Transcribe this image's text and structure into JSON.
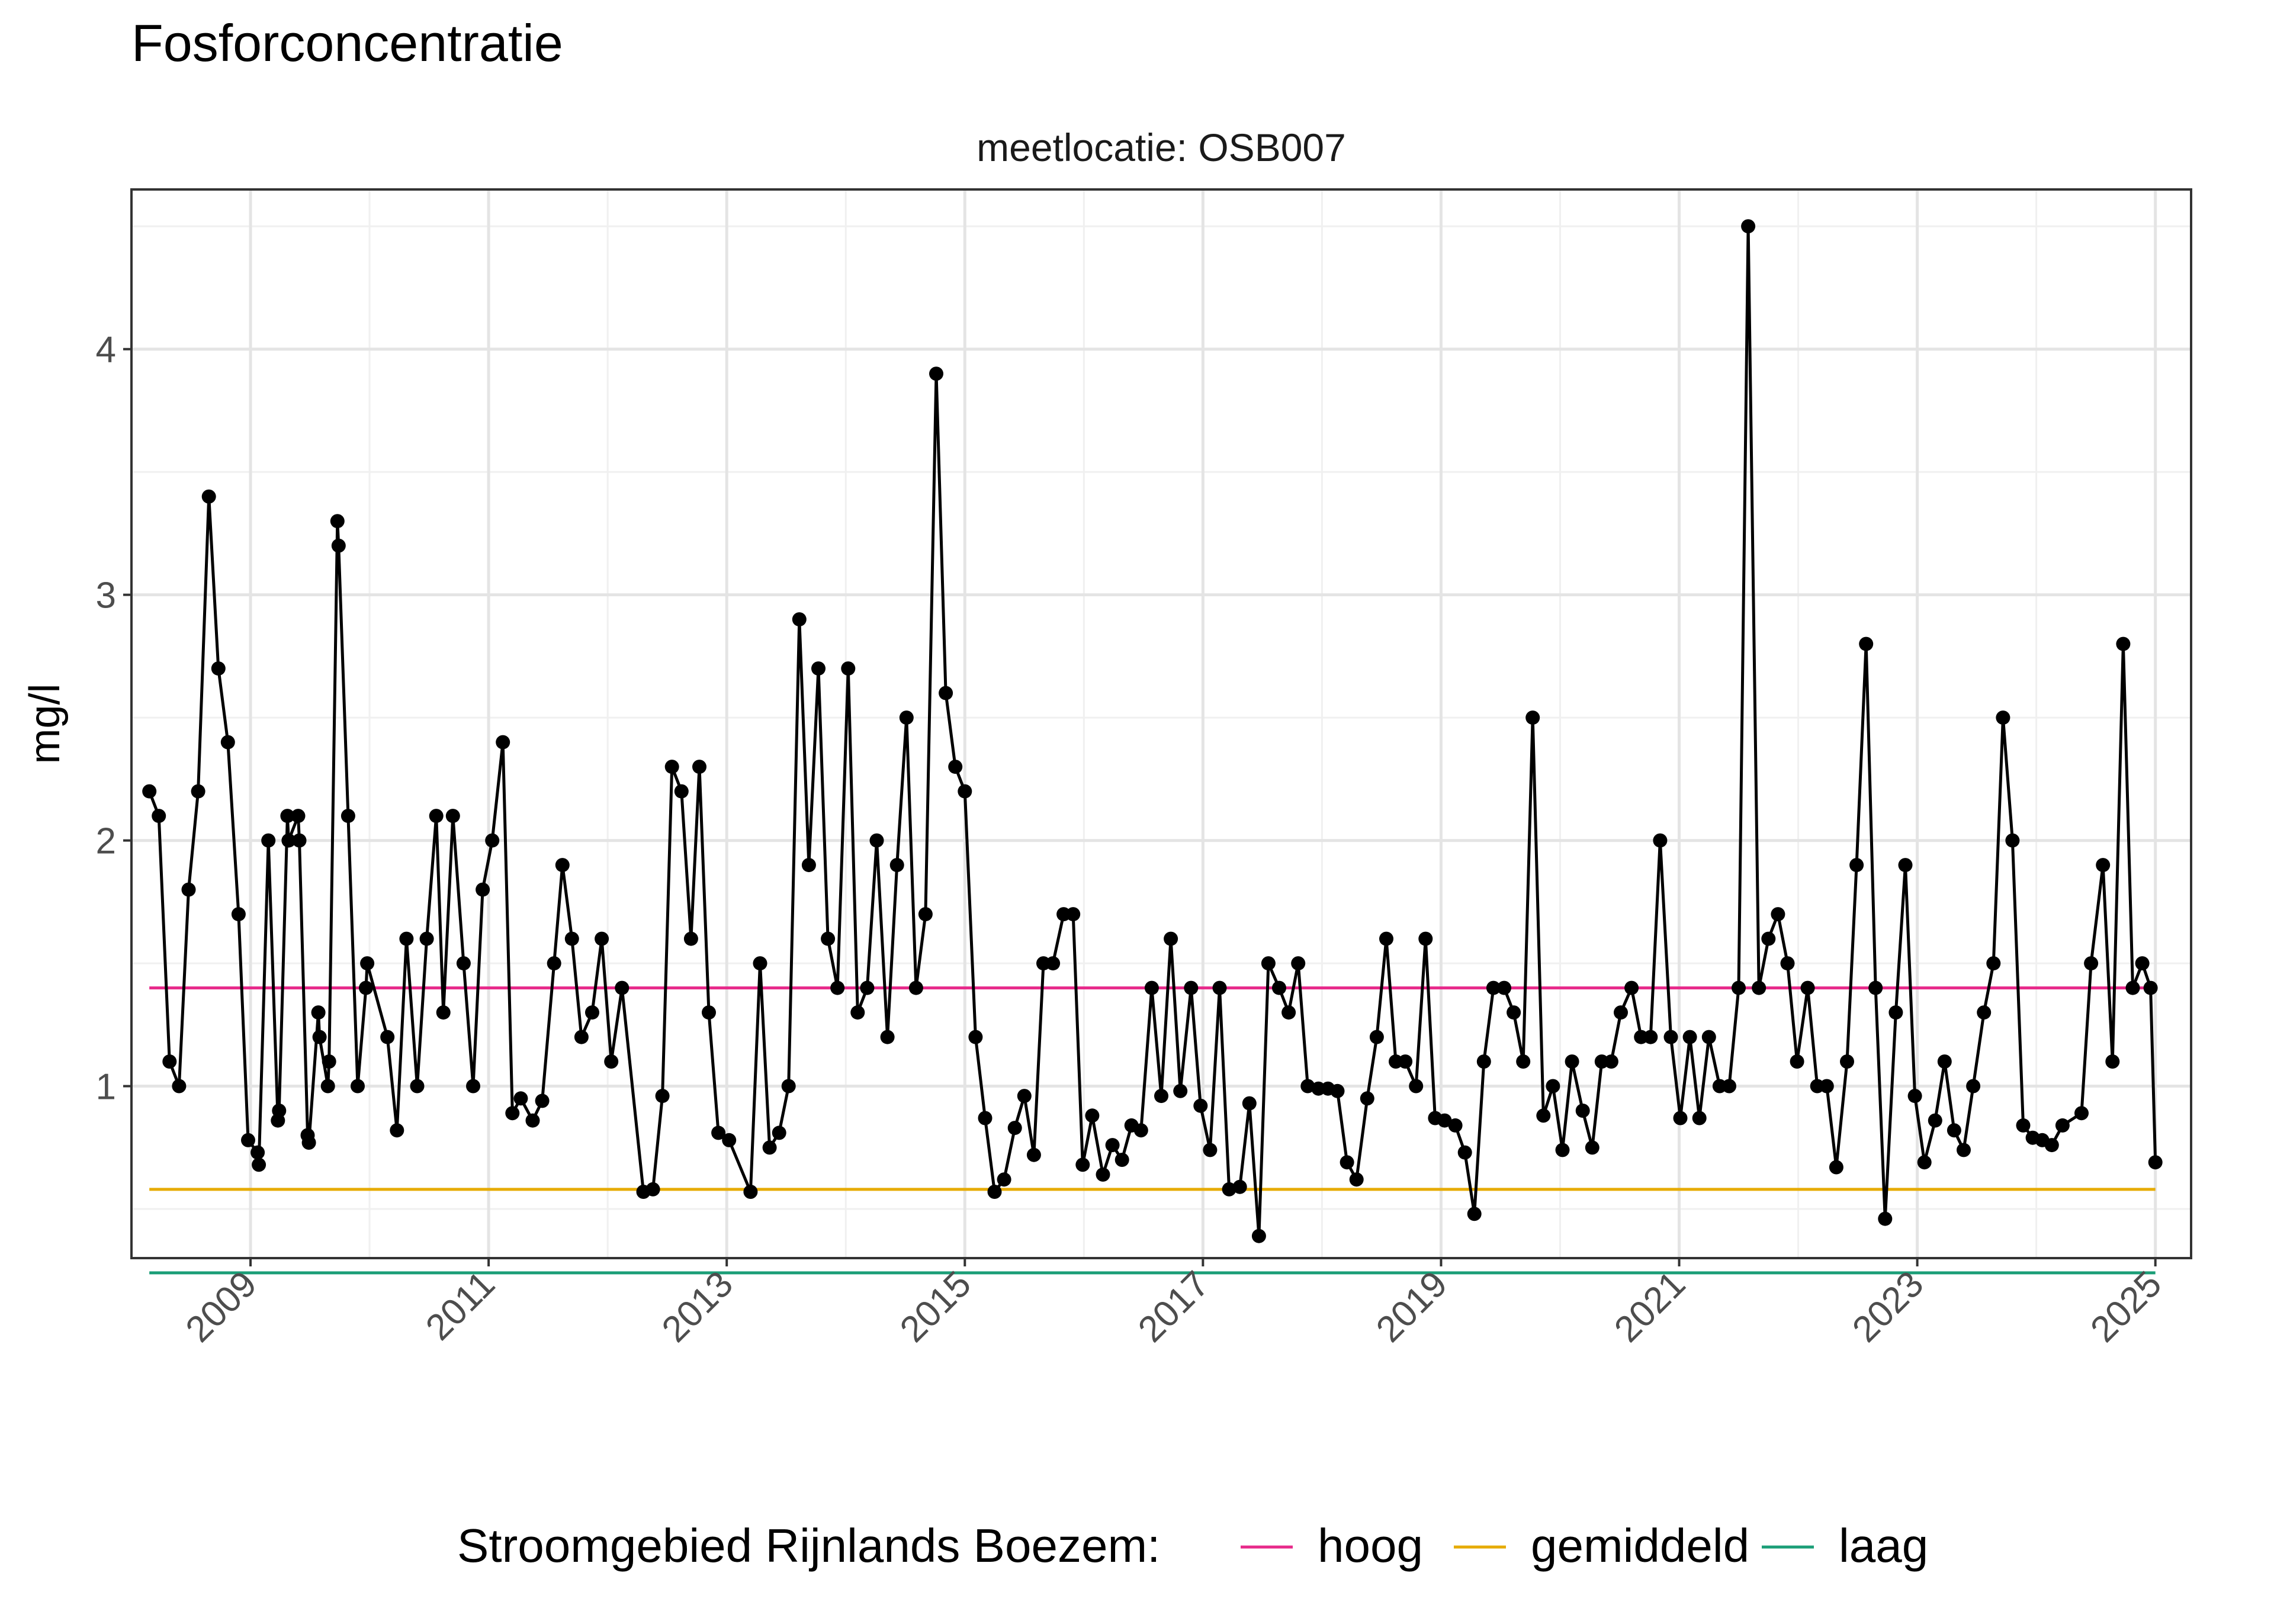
{
  "chart_data": {
    "type": "line",
    "title": "Fosforconcentratie",
    "subtitle": "meetlocatie: OSB007",
    "xlabel": "",
    "ylabel": "mg/l",
    "xlim": [
      2008.0,
      2025.3
    ],
    "ylim": [
      0.3,
      4.65
    ],
    "x_ticks": [
      2009,
      2011,
      2013,
      2015,
      2017,
      2019,
      2021,
      2023,
      2025
    ],
    "x_tick_labels": [
      "2009",
      "2011",
      "2013",
      "2015",
      "2017",
      "2019",
      "2021",
      "2023",
      "2025"
    ],
    "y_ticks": [
      1,
      2,
      3,
      4
    ],
    "y_tick_labels": [
      "1",
      "2",
      "3",
      "4"
    ],
    "grid": true,
    "legend_position": "bottom",
    "legend_title": "Stroomgebied Rijnlands Boezem:",
    "reference_lines": [
      {
        "name": "hoog",
        "value": 1.4,
        "x_start": 2008.15,
        "x_end": 2025.0,
        "color": "#E7298A"
      },
      {
        "name": "gemiddeld",
        "value": 0.58,
        "x_start": 2008.15,
        "x_end": 2025.0,
        "color": "#E6AB02"
      },
      {
        "name": "laag",
        "value": 0.24,
        "x_start": 2008.15,
        "x_end": 2025.0,
        "color": "#1B9E77"
      }
    ],
    "series": [
      {
        "color": "#000000",
        "points": [
          [
            2008.15,
            2.2
          ],
          [
            2008.23,
            2.1
          ],
          [
            2008.32,
            1.1
          ],
          [
            2008.4,
            1.0
          ],
          [
            2008.48,
            1.8
          ],
          [
            2008.56,
            2.2
          ],
          [
            2008.65,
            3.4
          ],
          [
            2008.73,
            2.7
          ],
          [
            2008.81,
            2.4
          ],
          [
            2008.9,
            1.7
          ],
          [
            2008.98,
            0.78
          ],
          [
            2009.06,
            0.73
          ],
          [
            2009.07,
            0.68
          ],
          [
            2009.15,
            2.0
          ],
          [
            2009.23,
            0.86
          ],
          [
            2009.24,
            0.9
          ],
          [
            2009.31,
            2.1
          ],
          [
            2009.32,
            2.0
          ],
          [
            2009.4,
            2.1
          ],
          [
            2009.41,
            2.0
          ],
          [
            2009.48,
            0.8
          ],
          [
            2009.49,
            0.77
          ],
          [
            2009.57,
            1.3
          ],
          [
            2009.58,
            1.2
          ],
          [
            2009.65,
            1.0
          ],
          [
            2009.66,
            1.1
          ],
          [
            2009.73,
            3.3
          ],
          [
            2009.74,
            3.2
          ],
          [
            2009.82,
            2.1
          ],
          [
            2009.9,
            1.0
          ],
          [
            2009.97,
            1.4
          ],
          [
            2009.98,
            1.5
          ],
          [
            2010.15,
            1.2
          ],
          [
            2010.23,
            0.82
          ],
          [
            2010.31,
            1.6
          ],
          [
            2010.4,
            1.0
          ],
          [
            2010.48,
            1.6
          ],
          [
            2010.56,
            2.1
          ],
          [
            2010.62,
            1.3
          ],
          [
            2010.7,
            2.1
          ],
          [
            2010.79,
            1.5
          ],
          [
            2010.87,
            1.0
          ],
          [
            2010.95,
            1.8
          ],
          [
            2011.03,
            2.0
          ],
          [
            2011.12,
            2.4
          ],
          [
            2011.2,
            0.89
          ],
          [
            2011.27,
            0.95
          ],
          [
            2011.37,
            0.86
          ],
          [
            2011.45,
            0.94
          ],
          [
            2011.55,
            1.5
          ],
          [
            2011.62,
            1.9
          ],
          [
            2011.7,
            1.6
          ],
          [
            2011.78,
            1.2
          ],
          [
            2011.87,
            1.3
          ],
          [
            2011.95,
            1.6
          ],
          [
            2012.03,
            1.1
          ],
          [
            2012.12,
            1.4
          ],
          [
            2012.3,
            0.57
          ],
          [
            2012.38,
            0.58
          ],
          [
            2012.46,
            0.96
          ],
          [
            2012.54,
            2.3
          ],
          [
            2012.62,
            2.2
          ],
          [
            2012.7,
            1.6
          ],
          [
            2012.77,
            2.3
          ],
          [
            2012.85,
            1.3
          ],
          [
            2012.93,
            0.81
          ],
          [
            2013.02,
            0.78
          ],
          [
            2013.2,
            0.57
          ],
          [
            2013.28,
            1.5
          ],
          [
            2013.36,
            0.75
          ],
          [
            2013.44,
            0.81
          ],
          [
            2013.52,
            1.0
          ],
          [
            2013.61,
            2.9
          ],
          [
            2013.69,
            1.9
          ],
          [
            2013.77,
            2.7
          ],
          [
            2013.85,
            1.6
          ],
          [
            2013.93,
            1.4
          ],
          [
            2014.02,
            2.7
          ],
          [
            2014.1,
            1.3
          ],
          [
            2014.18,
            1.4
          ],
          [
            2014.26,
            2.0
          ],
          [
            2014.35,
            1.2
          ],
          [
            2014.43,
            1.9
          ],
          [
            2014.51,
            2.5
          ],
          [
            2014.59,
            1.4
          ],
          [
            2014.67,
            1.7
          ],
          [
            2014.76,
            3.9
          ],
          [
            2014.84,
            2.6
          ],
          [
            2014.92,
            2.3
          ],
          [
            2015.0,
            2.2
          ],
          [
            2015.09,
            1.2
          ],
          [
            2015.17,
            0.87
          ],
          [
            2015.25,
            0.57
          ],
          [
            2015.33,
            0.62
          ],
          [
            2015.42,
            0.83
          ],
          [
            2015.5,
            0.96
          ],
          [
            2015.58,
            0.72
          ],
          [
            2015.66,
            1.5
          ],
          [
            2015.74,
            1.5
          ],
          [
            2015.83,
            1.7
          ],
          [
            2015.91,
            1.7
          ],
          [
            2015.99,
            0.68
          ],
          [
            2016.07,
            0.88
          ],
          [
            2016.16,
            0.64
          ],
          [
            2016.24,
            0.76
          ],
          [
            2016.32,
            0.7
          ],
          [
            2016.4,
            0.84
          ],
          [
            2016.48,
            0.82
          ],
          [
            2016.57,
            1.4
          ],
          [
            2016.65,
            0.96
          ],
          [
            2016.73,
            1.6
          ],
          [
            2016.81,
            0.98
          ],
          [
            2016.9,
            1.4
          ],
          [
            2016.98,
            0.92
          ],
          [
            2017.06,
            0.74
          ],
          [
            2017.14,
            1.4
          ],
          [
            2017.22,
            0.58
          ],
          [
            2017.31,
            0.59
          ],
          [
            2017.39,
            0.93
          ],
          [
            2017.47,
            0.39
          ],
          [
            2017.55,
            1.5
          ],
          [
            2017.64,
            1.4
          ],
          [
            2017.72,
            1.3
          ],
          [
            2017.8,
            1.5
          ],
          [
            2017.88,
            1.0
          ],
          [
            2017.97,
            0.99
          ],
          [
            2018.05,
            0.99
          ],
          [
            2018.13,
            0.98
          ],
          [
            2018.21,
            0.69
          ],
          [
            2018.29,
            0.62
          ],
          [
            2018.38,
            0.95
          ],
          [
            2018.46,
            1.2
          ],
          [
            2018.54,
            1.6
          ],
          [
            2018.62,
            1.1
          ],
          [
            2018.7,
            1.1
          ],
          [
            2018.79,
            1.0
          ],
          [
            2018.87,
            1.6
          ],
          [
            2018.95,
            0.87
          ],
          [
            2019.03,
            0.86
          ],
          [
            2019.12,
            0.84
          ],
          [
            2019.2,
            0.73
          ],
          [
            2019.28,
            0.48
          ],
          [
            2019.36,
            1.1
          ],
          [
            2019.44,
            1.4
          ],
          [
            2019.53,
            1.4
          ],
          [
            2019.61,
            1.3
          ],
          [
            2019.69,
            1.1
          ],
          [
            2019.77,
            2.5
          ],
          [
            2019.86,
            0.88
          ],
          [
            2019.94,
            1.0
          ],
          [
            2020.02,
            0.74
          ],
          [
            2020.1,
            1.1
          ],
          [
            2020.19,
            0.9
          ],
          [
            2020.27,
            0.75
          ],
          [
            2020.35,
            1.1
          ],
          [
            2020.43,
            1.1
          ],
          [
            2020.51,
            1.3
          ],
          [
            2020.6,
            1.4
          ],
          [
            2020.68,
            1.2
          ],
          [
            2020.76,
            1.2
          ],
          [
            2020.84,
            2.0
          ],
          [
            2020.93,
            1.2
          ],
          [
            2021.01,
            0.87
          ],
          [
            2021.09,
            1.2
          ],
          [
            2021.17,
            0.87
          ],
          [
            2021.25,
            1.2
          ],
          [
            2021.34,
            1.0
          ],
          [
            2021.42,
            1.0
          ],
          [
            2021.5,
            1.4
          ],
          [
            2021.58,
            4.5
          ],
          [
            2021.67,
            1.4
          ],
          [
            2021.75,
            1.6
          ],
          [
            2021.83,
            1.7
          ],
          [
            2021.91,
            1.5
          ],
          [
            2021.99,
            1.1
          ],
          [
            2022.08,
            1.4
          ],
          [
            2022.16,
            1.0
          ],
          [
            2022.24,
            1.0
          ],
          [
            2022.32,
            0.67
          ],
          [
            2022.41,
            1.1
          ],
          [
            2022.49,
            1.9
          ],
          [
            2022.57,
            2.8
          ],
          [
            2022.65,
            1.4
          ],
          [
            2022.73,
            0.46
          ],
          [
            2022.82,
            1.3
          ],
          [
            2022.9,
            1.9
          ],
          [
            2022.98,
            0.96
          ],
          [
            2023.06,
            0.69
          ],
          [
            2023.15,
            0.86
          ],
          [
            2023.23,
            1.1
          ],
          [
            2023.31,
            0.82
          ],
          [
            2023.39,
            0.74
          ],
          [
            2023.47,
            1.0
          ],
          [
            2023.56,
            1.3
          ],
          [
            2023.64,
            1.5
          ],
          [
            2023.72,
            2.5
          ],
          [
            2023.8,
            2.0
          ],
          [
            2023.89,
            0.84
          ],
          [
            2023.97,
            0.79
          ],
          [
            2024.05,
            0.78
          ],
          [
            2024.13,
            0.76
          ],
          [
            2024.22,
            0.84
          ],
          [
            2024.38,
            0.89
          ],
          [
            2024.46,
            1.5
          ],
          [
            2024.56,
            1.9
          ],
          [
            2024.64,
            1.1
          ],
          [
            2024.73,
            2.8
          ],
          [
            2024.81,
            1.4
          ],
          [
            2024.89,
            1.5
          ],
          [
            2024.96,
            1.4
          ],
          [
            2025.0,
            0.69
          ]
        ]
      }
    ]
  }
}
